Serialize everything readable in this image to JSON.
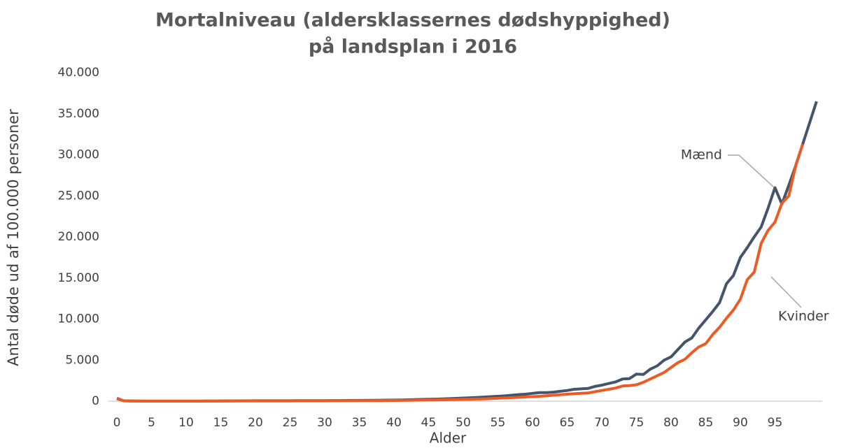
{
  "chart_data": {
    "type": "line",
    "title": "Mortalniveau (aldersklassernes dødshyppighed)",
    "subtitle": "på landsplan i 2016",
    "x_label": "Alder",
    "y_label": "Antal døde ud af 100.000 personer",
    "categories": [
      "0",
      null,
      null,
      null,
      null,
      "5",
      null,
      null,
      null,
      null,
      "10",
      null,
      null,
      null,
      null,
      "15",
      null,
      null,
      null,
      null,
      "20",
      null,
      null,
      null,
      null,
      "25",
      null,
      null,
      null,
      null,
      "30",
      null,
      null,
      null,
      null,
      "35",
      null,
      null,
      null,
      null,
      "40",
      null,
      null,
      null,
      null,
      "45",
      null,
      null,
      null,
      null,
      "50",
      null,
      null,
      null,
      null,
      "55",
      null,
      null,
      null,
      null,
      "60",
      null,
      null,
      null,
      null,
      "65",
      null,
      null,
      null,
      null,
      "70",
      null,
      null,
      null,
      null,
      "75",
      null,
      null,
      null,
      null,
      "80",
      null,
      null,
      null,
      null,
      "85",
      null,
      null,
      null,
      null,
      "90",
      null,
      null,
      null,
      null,
      "95",
      null,
      null,
      null,
      null,
      null,
      null
    ],
    "series": [
      {
        "name": "Mænd",
        "color": "#44546a",
        "values": [
          350,
          40,
          20,
          15,
          12,
          10,
          10,
          10,
          10,
          10,
          10,
          10,
          12,
          15,
          20,
          25,
          30,
          35,
          40,
          45,
          50,
          50,
          55,
          55,
          55,
          55,
          60,
          60,
          65,
          65,
          70,
          75,
          80,
          85,
          90,
          95,
          100,
          110,
          120,
          130,
          140,
          150,
          170,
          190,
          210,
          230,
          250,
          280,
          310,
          340,
          380,
          420,
          460,
          500,
          550,
          600,
          650,
          720,
          800,
          850,
          950,
          1050,
          1050,
          1100,
          1200,
          1300,
          1450,
          1500,
          1550,
          1800,
          1950,
          2150,
          2350,
          2700,
          2750,
          3300,
          3250,
          3900,
          4300,
          5000,
          5400,
          6300,
          7200,
          7700,
          8900,
          9900,
          10900,
          12000,
          14300,
          15300,
          17500,
          18700,
          20000,
          21200,
          23500,
          26000,
          24000,
          26300,
          28700,
          31300,
          33900,
          36500
        ]
      },
      {
        "name": "Kvinder",
        "color": "#ee5a24",
        "values": [
          300,
          30,
          15,
          10,
          8,
          7,
          7,
          7,
          7,
          7,
          7,
          8,
          9,
          10,
          12,
          14,
          16,
          18,
          20,
          22,
          24,
          25,
          26,
          27,
          28,
          29,
          30,
          32,
          34,
          36,
          38,
          40,
          44,
          48,
          52,
          56,
          60,
          65,
          70,
          78,
          86,
          95,
          105,
          115,
          125,
          140,
          155,
          170,
          185,
          200,
          220,
          240,
          260,
          285,
          315,
          350,
          390,
          430,
          470,
          510,
          550,
          600,
          650,
          720,
          780,
          850,
          900,
          950,
          1000,
          1150,
          1300,
          1450,
          1600,
          1850,
          1900,
          2000,
          2300,
          2700,
          3100,
          3500,
          4100,
          4700,
          5100,
          5900,
          6600,
          7000,
          8100,
          9000,
          10100,
          11100,
          12400,
          14800,
          15700,
          19200,
          20800,
          21800,
          24100,
          25000,
          28700,
          31300,
          null,
          null
        ]
      }
    ],
    "annotations": [
      "Mænd",
      "Kvinder"
    ],
    "ylim": [
      0,
      40000
    ],
    "yticks": [
      0,
      {
        "value": 5000,
        "label": "5.000"
      },
      {
        "value": 10000,
        "label": "10.000"
      },
      {
        "value": 15000,
        "label": "15.000"
      },
      {
        "value": 20000,
        "label": "20.000"
      },
      {
        "value": 25000,
        "label": "25.000"
      },
      {
        "value": 30000,
        "label": "30.000"
      },
      {
        "value": 35000,
        "label": "35.000"
      },
      {
        "value": 40000,
        "label": "40.000"
      }
    ],
    "grid": false
  }
}
